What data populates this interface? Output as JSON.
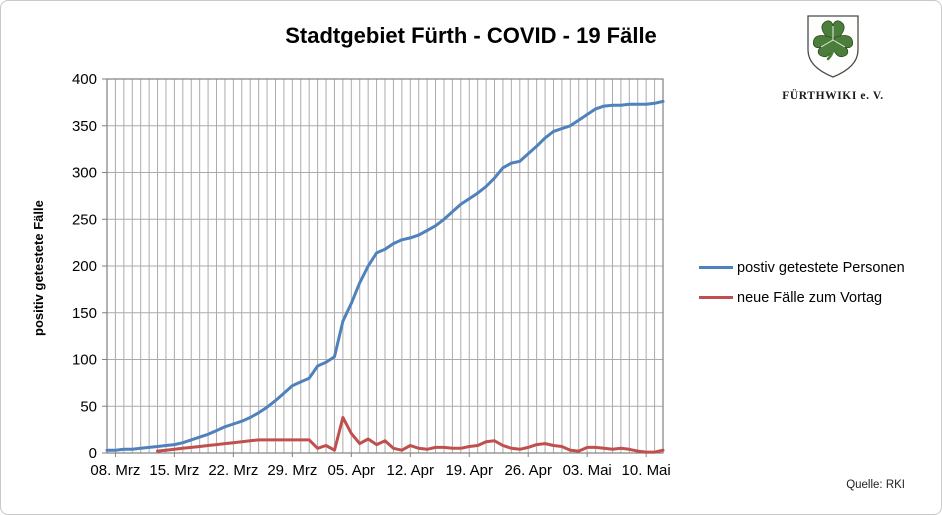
{
  "title": "Stadtgebiet Fürth - COVID - 19 Fälle",
  "logo": {
    "org": "FÜRTHWIKI e. V.",
    "crest": "green-cloverleaf-shield"
  },
  "source": "Quelle: RKI",
  "colors": {
    "series_positive": "#4F81BD",
    "series_new": "#C0504D",
    "gridline": "#ababab",
    "axis_frame": "#808080"
  },
  "legend": [
    {
      "label": "postiv getestete Personen",
      "color": "#4F81BD"
    },
    {
      "label": "neue Fälle zum Vortag",
      "color": "#C0504D"
    }
  ],
  "chart_data": {
    "type": "line",
    "title": "Stadtgebiet Fürth - COVID - 19 Fälle",
    "xlabel": "",
    "ylabel": "positiv getestete Fälle",
    "ylim": [
      0,
      400
    ],
    "y_ticks": [
      0,
      50,
      100,
      150,
      200,
      250,
      300,
      350,
      400
    ],
    "grid": "vertical line per day, horizontal every 50",
    "legend_position": "right",
    "x_tick_labels": [
      "08. Mrz",
      "15. Mrz",
      "22. Mrz",
      "29. Mrz",
      "05. Apr",
      "12. Apr",
      "19. Apr",
      "26. Apr",
      "03. Mai",
      "10. Mai"
    ],
    "x_tick_indices": [
      1,
      8,
      15,
      22,
      29,
      36,
      43,
      50,
      57,
      64
    ],
    "dates": [
      "07.03",
      "08.03",
      "09.03",
      "10.03",
      "11.03",
      "12.03",
      "13.03",
      "14.03",
      "15.03",
      "16.03",
      "17.03",
      "18.03",
      "19.03",
      "20.03",
      "21.03",
      "22.03",
      "23.03",
      "24.03",
      "25.03",
      "26.03",
      "27.03",
      "28.03",
      "29.03",
      "30.03",
      "31.03",
      "01.04",
      "02.04",
      "03.04",
      "04.04",
      "05.04",
      "06.04",
      "07.04",
      "08.04",
      "09.04",
      "10.04",
      "11.04",
      "12.04",
      "13.04",
      "14.04",
      "15.04",
      "16.04",
      "17.04",
      "18.04",
      "19.04",
      "20.04",
      "21.04",
      "22.04",
      "23.04",
      "24.04",
      "25.04",
      "26.04",
      "27.04",
      "28.04",
      "29.04",
      "30.04",
      "01.05",
      "02.05",
      "03.05",
      "04.05",
      "05.05",
      "06.05",
      "07.05",
      "08.05",
      "09.05",
      "10.05",
      "11.05",
      "12.05"
    ],
    "series": [
      {
        "name": "postiv getestete Personen",
        "color": "#4F81BD",
        "values": [
          3,
          3,
          4,
          4,
          5,
          6,
          7,
          8,
          9,
          11,
          14,
          17,
          20,
          24,
          28,
          31,
          34,
          38,
          43,
          49,
          56,
          64,
          72,
          76,
          80,
          93,
          97,
          103,
          141,
          160,
          182,
          200,
          214,
          218,
          224,
          228,
          230,
          233,
          238,
          243,
          250,
          258,
          266,
          272,
          278,
          285,
          294,
          305,
          310,
          312,
          320,
          328,
          337,
          344,
          347,
          350,
          356,
          362,
          368,
          371,
          372,
          372,
          373,
          373,
          373,
          374,
          376
        ]
      },
      {
        "name": "neue Fälle zum Vortag",
        "color": "#C0504D",
        "values": [
          null,
          null,
          null,
          null,
          null,
          null,
          2,
          3,
          4,
          5,
          6,
          7,
          8,
          9,
          10,
          11,
          12,
          13,
          14,
          14,
          14,
          14,
          14,
          14,
          14,
          5,
          8,
          3,
          38,
          21,
          10,
          15,
          9,
          13,
          5,
          3,
          8,
          5,
          4,
          6,
          6,
          5,
          5,
          7,
          8,
          12,
          13,
          8,
          5,
          4,
          6,
          9,
          10,
          8,
          7,
          3,
          2,
          6,
          6,
          5,
          4,
          5,
          4,
          2,
          1,
          1,
          3
        ]
      }
    ]
  }
}
